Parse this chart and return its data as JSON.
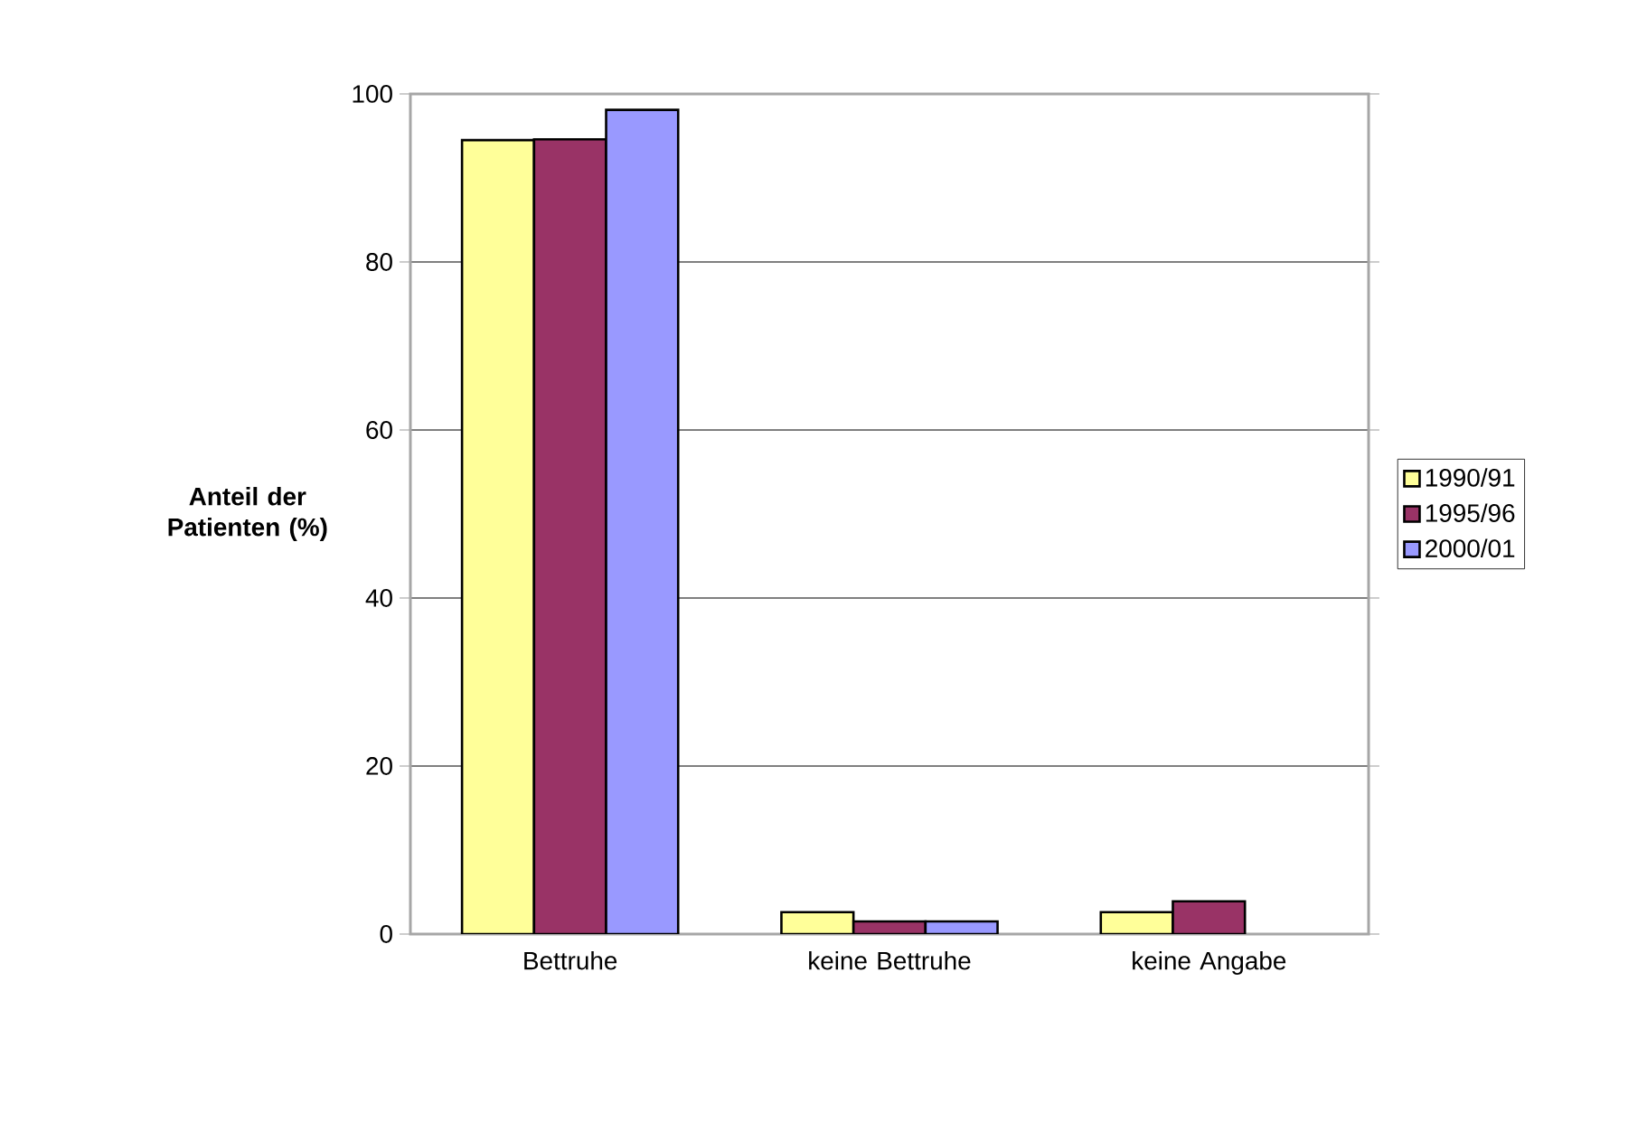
{
  "chart_data": {
    "type": "bar",
    "ylabel": "Anteil der Patienten (%)",
    "categories": [
      "Bettruhe",
      "keine Bettruhe",
      "keine Angabe"
    ],
    "series": [
      {
        "name": "1990/91",
        "color": "#ffff99",
        "values": [
          94.5,
          2.6,
          2.6
        ]
      },
      {
        "name": "1995/96",
        "color": "#993366",
        "values": [
          94.6,
          1.5,
          3.9
        ]
      },
      {
        "name": "2000/01",
        "color": "#9999ff",
        "values": [
          98.1,
          1.5,
          null
        ]
      }
    ],
    "ylim": [
      0,
      100
    ],
    "yticks": [
      0,
      20,
      40,
      60,
      80,
      100
    ],
    "grid": "y",
    "legend": "right"
  }
}
